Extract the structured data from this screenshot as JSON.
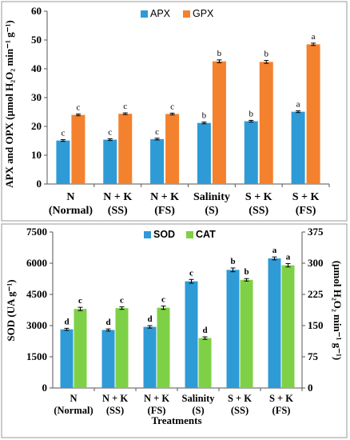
{
  "chart_data": [
    {
      "type": "bar",
      "categories": [
        [
          "N",
          "(Normal)"
        ],
        [
          "N + K",
          "(SS)"
        ],
        [
          "N + K",
          "(FS)"
        ],
        [
          "Salinity",
          "(S)"
        ],
        [
          "S + K",
          "(SS)"
        ],
        [
          "S + K",
          "(FS)"
        ]
      ],
      "series": [
        {
          "name": "APX",
          "color": "#2e9bd6",
          "values": [
            15.1,
            15.4,
            15.6,
            21.2,
            21.8,
            25.1
          ],
          "errors": [
            0.3,
            0.3,
            0.3,
            0.3,
            0.3,
            0.3
          ],
          "letters": [
            "c",
            "c",
            "c",
            "b",
            "b",
            "a"
          ]
        },
        {
          "name": "GPX",
          "color": "#f4812e",
          "values": [
            24.0,
            24.4,
            24.3,
            42.6,
            42.4,
            48.5
          ],
          "errors": [
            0.3,
            0.3,
            0.3,
            0.5,
            0.5,
            0.4
          ],
          "letters": [
            "c",
            "c",
            "c",
            "b",
            "b",
            "a"
          ]
        }
      ],
      "ylabel": "APX and OPX (µmol H₂O₂ min⁻¹ g⁻¹)",
      "ylim": [
        0,
        60
      ],
      "yticks": [
        0,
        10,
        20,
        30,
        40,
        50,
        60
      ],
      "legend": "top-center"
    },
    {
      "type": "bar",
      "categories": [
        [
          "N",
          "(Normal)"
        ],
        [
          "N + K",
          "(SS)"
        ],
        [
          "N + K",
          "(FS)"
        ],
        [
          "Salinity",
          "(S)"
        ],
        [
          "S + K",
          "(SS)"
        ],
        [
          "S + K",
          "(FS)"
        ]
      ],
      "series": [
        {
          "name": "SOD",
          "color": "#2e9bd6",
          "axis": "left",
          "values": [
            2820,
            2790,
            2940,
            5130,
            5680,
            6230
          ],
          "errors": [
            50,
            50,
            60,
            90,
            90,
            70
          ],
          "letters": [
            "d",
            "d",
            "d",
            "c",
            "b",
            "a"
          ]
        },
        {
          "name": "CAT",
          "color": "#7ed146",
          "axis": "right",
          "values": [
            190,
            192,
            193,
            120,
            260,
            295
          ],
          "errors": [
            4,
            3,
            4,
            3,
            3,
            4
          ],
          "letters": [
            "c",
            "c",
            "c",
            "d",
            "b",
            "a"
          ]
        }
      ],
      "xlabel": "Treatments",
      "ylabel": "SOD (UA g⁻¹)",
      "ylabel_right": "(µmol H₂O₂ min⁻¹ g⁻¹)",
      "ylim": [
        0,
        7500
      ],
      "yticks": [
        0,
        1500,
        3000,
        4500,
        6000,
        7500
      ],
      "ylim_right": [
        0,
        375
      ],
      "yticks_right": [
        0,
        75,
        150,
        225,
        300,
        375
      ],
      "legend": "top-center"
    }
  ]
}
